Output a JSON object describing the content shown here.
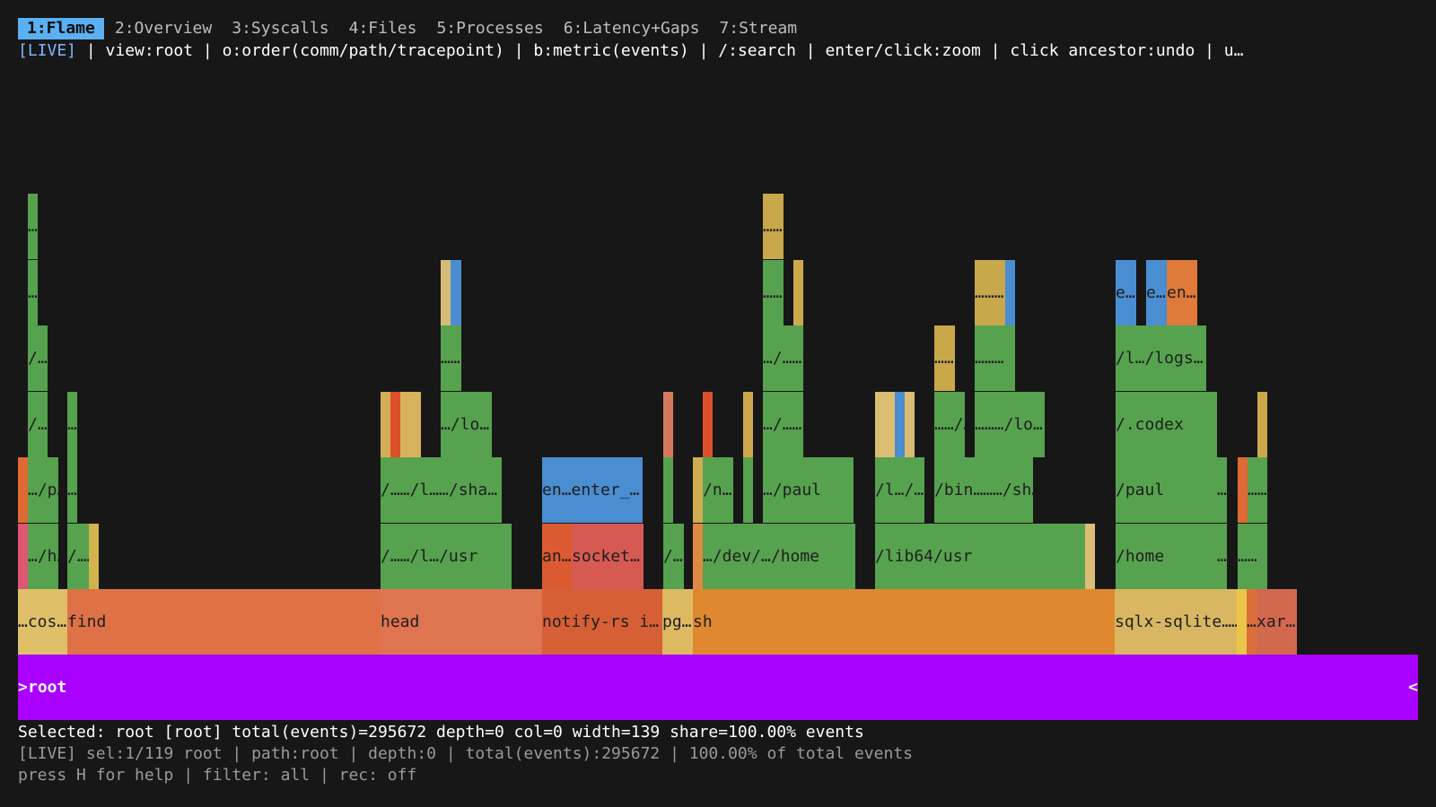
{
  "tabs": [
    {
      "label": "1:Flame",
      "active": true
    },
    {
      "label": "2:Overview",
      "active": false
    },
    {
      "label": "3:Syscalls",
      "active": false
    },
    {
      "label": "4:Files",
      "active": false
    },
    {
      "label": "5:Processes",
      "active": false
    },
    {
      "label": "6:Latency+Gaps",
      "active": false
    },
    {
      "label": "7:Stream",
      "active": false
    }
  ],
  "statusline": {
    "live": "[LIVE]",
    "text": " | view:root | o:order(comm/path/tracepoint) | b:metric(events) | /:search | enter/click:zoom | click ancestor:undo | u…"
  },
  "colors": {
    "green": "#57a24f",
    "root": "#aa00ff",
    "active_tab": "#5ab0f2",
    "background": "#171717"
  },
  "root": {
    "arrow_left": ">",
    "label": "root",
    "arrow_right": "<"
  },
  "frames": {
    "depth1": [
      {
        "label": "…cos…",
        "color": "#dfbf68"
      },
      {
        "label": "find",
        "color": "#df7147"
      },
      {
        "label": "head",
        "color": "#df7550"
      },
      {
        "label": "notify-rs i…",
        "color": "#d65f35"
      },
      {
        "label": "pg…",
        "color": "#ddb962"
      },
      {
        "label": "sh",
        "color": "#df882f"
      },
      {
        "label": "sqlx-sqlite……",
        "color": "#d9b762"
      },
      {
        "label": "",
        "color": "#ebc54a"
      },
      {
        "label": "…",
        "color": "#dc6e3a"
      },
      {
        "label": "xar…",
        "color": "#d2694f"
      }
    ],
    "depth2": [
      {
        "label": "",
        "color": "#dd5672"
      },
      {
        "label": "…/h…",
        "color": "#57a24f"
      },
      {
        "label": "/……",
        "color": "#57a24f"
      },
      {
        "label": "",
        "color": "#cfb34c"
      },
      {
        "label": "/……/l…/usr",
        "color": "#57a24f"
      },
      {
        "label": "an…",
        "color": "#dc5a30"
      },
      {
        "label": "socket…",
        "color": "#d65a52"
      },
      {
        "label": "/…",
        "color": "#57a24f"
      },
      {
        "label": "",
        "color": "#df8745"
      },
      {
        "label": "…/dev/…/home",
        "color": "#57a24f"
      },
      {
        "label": "/lib64/usr",
        "color": "#57a24f"
      },
      {
        "label": "",
        "color": "#dcbd76"
      },
      {
        "label": "/home",
        "color": "#57a24f"
      },
      {
        "label": "…",
        "color": "#57a24f"
      },
      {
        "label": "……",
        "color": "#57a24f"
      }
    ],
    "depth3": [
      {
        "label": "",
        "color": "#df6a34"
      },
      {
        "label": "…/p…",
        "color": "#57a24f"
      },
      {
        "label": "…",
        "color": "#57a24f"
      },
      {
        "label": "/……/l……/sha…",
        "color": "#57a24f"
      },
      {
        "label": "en…enter_…",
        "color": "#4a8dd1"
      },
      {
        "label": "",
        "color": "#57a24f"
      },
      {
        "label": "",
        "color": "#cfac51"
      },
      {
        "label": "/n…",
        "color": "#57a24f"
      },
      {
        "label": "",
        "color": "#57a24f"
      },
      {
        "label": "…/paul",
        "color": "#57a24f"
      },
      {
        "label": "/l…/…",
        "color": "#57a24f"
      },
      {
        "label": "/bin………/sh…",
        "color": "#57a24f"
      },
      {
        "label": "/paul",
        "color": "#57a24f"
      },
      {
        "label": "…",
        "color": "#57a24f"
      },
      {
        "label": "",
        "color": "#df6a34"
      },
      {
        "label": "……",
        "color": "#57a24f"
      }
    ],
    "depth4": [
      {
        "label": "/…",
        "color": "#57a24f"
      },
      {
        "label": "…",
        "color": "#57a24f"
      },
      {
        "label": "",
        "color": "#d4ad52"
      },
      {
        "label": "",
        "color": "#dc4f2a"
      },
      {
        "label": "",
        "color": "#d8b35c"
      },
      {
        "label": "…/lo…",
        "color": "#57a24f"
      },
      {
        "label": "",
        "color": "#d57a5e"
      },
      {
        "label": "",
        "color": "#dc4f2a"
      },
      {
        "label": "",
        "color": "#cda84b"
      },
      {
        "label": "…/……",
        "color": "#57a24f"
      },
      {
        "label": "",
        "color": "#d9bd72"
      },
      {
        "label": "",
        "color": "#4a8dd1"
      },
      {
        "label": "",
        "color": "#d9bd72"
      },
      {
        "label": "……/…",
        "color": "#57a24f"
      },
      {
        "label": "………/lo…",
        "color": "#57a24f"
      },
      {
        "label": "/.codex",
        "color": "#57a24f"
      },
      {
        "label": "",
        "color": "#cda84b"
      }
    ],
    "depth5": [
      {
        "label": "/…",
        "color": "#57a24f"
      },
      {
        "label": "……",
        "color": "#57a24f"
      },
      {
        "label": "…/……",
        "color": "#57a24f"
      },
      {
        "label": "……",
        "color": "#c9a84a"
      },
      {
        "label": "………",
        "color": "#57a24f"
      },
      {
        "label": "/l…/logs…",
        "color": "#57a24f"
      }
    ],
    "depth6": [
      {
        "label": "……",
        "color": "#57a24f"
      },
      {
        "label": "",
        "color": "#d5bd78"
      },
      {
        "label": "",
        "color": "#4a8dd1"
      },
      {
        "label": "……",
        "color": "#57a24f"
      },
      {
        "label": "",
        "color": "#ccaa4c"
      },
      {
        "label": "………",
        "color": "#c8a84a"
      },
      {
        "label": "",
        "color": "#4a8dd1"
      },
      {
        "label": "e…",
        "color": "#4a8dd1"
      },
      {
        "label": "e…",
        "color": "#4a8dd1"
      },
      {
        "label": "en…",
        "color": "#df7a3a"
      }
    ],
    "depth7": [
      {
        "label": "……",
        "color": "#57a24f"
      },
      {
        "label": "……",
        "color": "#c8a84a"
      }
    ]
  },
  "footer": {
    "selected": "Selected: root [root] total(events)=295672 depth=0 col=0 width=139 share=100.00% events",
    "status": "[LIVE] sel:1/119 root | path:root | depth:0 | total(events):295672 | 100.00% of total events",
    "help": "press H for help | filter: all | rec: off"
  }
}
